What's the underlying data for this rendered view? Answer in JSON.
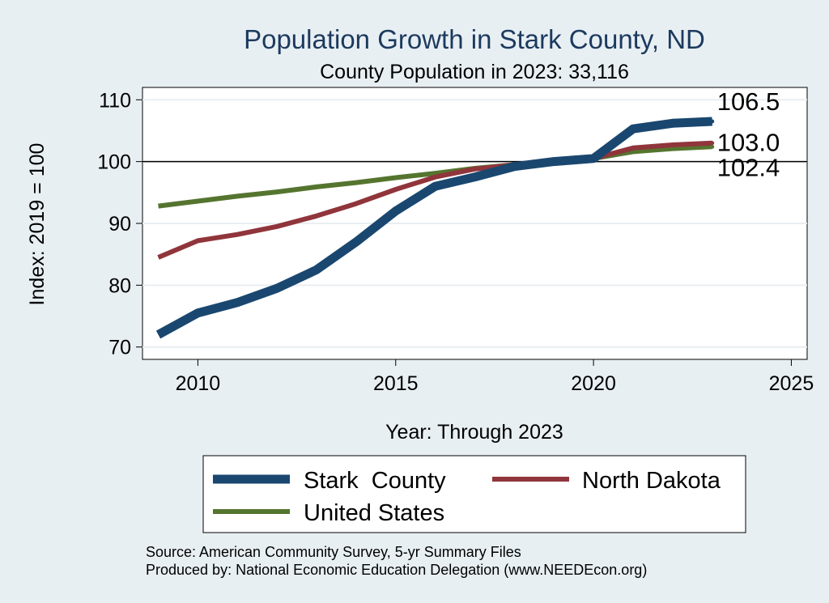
{
  "chart_data": {
    "type": "line",
    "title": "Population Growth in Stark County, ND",
    "subtitle": "County Population in 2023: 33,116",
    "xlabel": "Year: Through 2023",
    "ylabel": "Index: 2019 = 100",
    "xlim": [
      2008.6,
      2025.4
    ],
    "ylim": [
      68,
      112
    ],
    "xticks": [
      2010,
      2015,
      2020,
      2025
    ],
    "yticks": [
      70,
      80,
      90,
      100,
      110
    ],
    "reference_line": 100,
    "x": [
      2009,
      2010,
      2011,
      2012,
      2013,
      2014,
      2015,
      2016,
      2017,
      2018,
      2019,
      2020,
      2021,
      2022,
      2023
    ],
    "series": [
      {
        "name": "Stark  County",
        "color": "#1a476f",
        "values": [
          72.0,
          75.5,
          77.2,
          79.5,
          82.5,
          87.0,
          92.0,
          96.0,
          97.5,
          99.2,
          100.0,
          100.5,
          105.3,
          106.2,
          106.5
        ],
        "end_label": "106.5"
      },
      {
        "name": "North Dakota",
        "color": "#90353b",
        "values": [
          84.5,
          87.2,
          88.2,
          89.5,
          91.2,
          93.2,
          95.5,
          97.5,
          98.8,
          99.5,
          100.0,
          100.5,
          102.2,
          102.7,
          103.0
        ],
        "end_label": "103.0"
      },
      {
        "name": "United States",
        "color": "#55752f",
        "values": [
          92.8,
          93.6,
          94.4,
          95.1,
          95.9,
          96.6,
          97.4,
          98.1,
          98.9,
          99.5,
          100.0,
          100.5,
          101.6,
          102.1,
          102.4
        ],
        "end_label": "102.4"
      }
    ],
    "legend": [
      "Stark  County",
      "North Dakota",
      "United States"
    ],
    "legend_position": "bottom",
    "grid": true,
    "footnotes": [
      "Source: American Community Survey, 5-yr Summary Files",
      "Produced by: National Economic Education Delegation (www.NEEDEcon.org)"
    ]
  }
}
